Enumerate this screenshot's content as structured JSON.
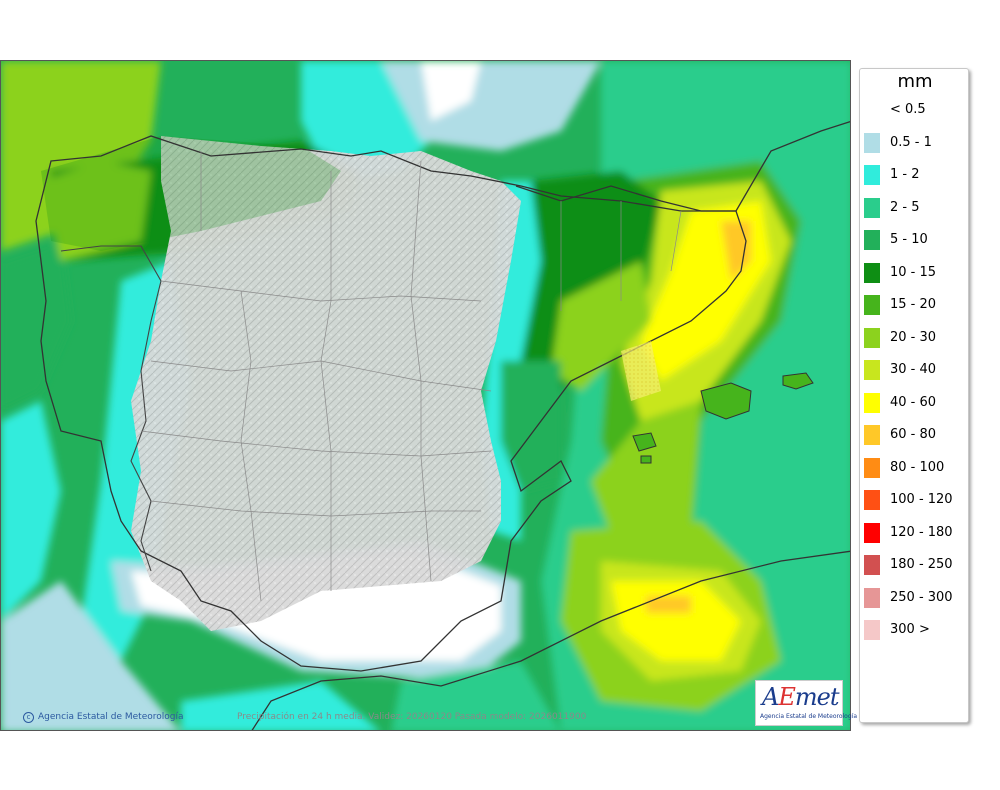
{
  "legend": {
    "unit": "mm",
    "items": [
      {
        "label": "< 0.5",
        "color": "#ffffff"
      },
      {
        "label": "0.5 - 1",
        "color": "#b0dde6"
      },
      {
        "label": "1 - 2",
        "color": "#30ecdc"
      },
      {
        "label": "2 - 5",
        "color": "#2acd8c"
      },
      {
        "label": "5 - 10",
        "color": "#22b05a"
      },
      {
        "label": "10 - 15",
        "color": "#0e8e14"
      },
      {
        "label": "15 - 20",
        "color": "#46b41c"
      },
      {
        "label": "20 - 30",
        "color": "#8cd21e"
      },
      {
        "label": "30 - 40",
        "color": "#c8e61e"
      },
      {
        "label": "40 - 60",
        "color": "#ffff00"
      },
      {
        "label": "60 - 80",
        "color": "#ffc828"
      },
      {
        "label": "80 - 100",
        "color": "#ff8c14"
      },
      {
        "label": "100 - 120",
        "color": "#ff5014"
      },
      {
        "label": "120 - 180",
        "color": "#ff0000"
      },
      {
        "label": "180 - 250",
        "color": "#d25050"
      },
      {
        "label": "250 - 300",
        "color": "#e69696"
      },
      {
        "label": "300 >",
        "color": "#f5c8c8"
      }
    ]
  },
  "footer": {
    "credit": "Agencia Estatal de Meteorología",
    "caption": "Precipitación en 24 h media. Validez: 20260120 Pasada modelo: 2026011900"
  },
  "logo": {
    "mark": "AEmet",
    "subtitle": "Agencia Estatal de Meteorología"
  }
}
